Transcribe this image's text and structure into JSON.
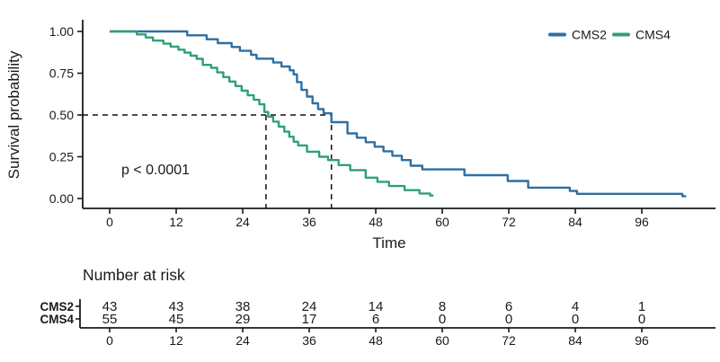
{
  "chart_data": {
    "type": "line",
    "subtype": "kaplan-meier-step",
    "title": "",
    "xlabel": "Time",
    "ylabel": "Survival probability",
    "xlim": [
      0,
      109
    ],
    "ylim": [
      0,
      1
    ],
    "x_ticks": [
      0,
      12,
      24,
      36,
      48,
      60,
      72,
      84,
      96
    ],
    "y_ticks": [
      1.0,
      0.75,
      0.5,
      0.25,
      0.0
    ],
    "y_tick_labels": [
      "1.00",
      "0.75",
      "0.50",
      "0.25",
      "0.00"
    ],
    "grid": false,
    "legend_position": "top-right",
    "annotations": {
      "p_value": "p < 0.0001",
      "median_survival": [
        {
          "group": "CMS4",
          "time": 28.2
        },
        {
          "group": "CMS2",
          "time": 40
        },
        {
          "survival_level": 0.5
        }
      ]
    },
    "series": [
      {
        "name": "CMS2",
        "color": "#2D6FA3",
        "points": [
          [
            0,
            1.0
          ],
          [
            14,
            0.977
          ],
          [
            17.5,
            0.953
          ],
          [
            19.5,
            0.93
          ],
          [
            22,
            0.907
          ],
          [
            23.5,
            0.884
          ],
          [
            25.5,
            0.86
          ],
          [
            26.5,
            0.837
          ],
          [
            29.5,
            0.814
          ],
          [
            31,
            0.79
          ],
          [
            32.5,
            0.767
          ],
          [
            33.2,
            0.743
          ],
          [
            33.8,
            0.697
          ],
          [
            34.6,
            0.65
          ],
          [
            35.6,
            0.61
          ],
          [
            36.6,
            0.57
          ],
          [
            37.6,
            0.535
          ],
          [
            38.6,
            0.51
          ],
          [
            40,
            0.457
          ],
          [
            42.9,
            0.39
          ],
          [
            44.6,
            0.364
          ],
          [
            46.2,
            0.337
          ],
          [
            47.8,
            0.31
          ],
          [
            49.4,
            0.283
          ],
          [
            51,
            0.256
          ],
          [
            52.7,
            0.23
          ],
          [
            54.3,
            0.196
          ],
          [
            56.4,
            0.174
          ],
          [
            64,
            0.14
          ],
          [
            71.8,
            0.105
          ],
          [
            75.5,
            0.065
          ],
          [
            83,
            0.045
          ],
          [
            84.3,
            0.028
          ],
          [
            103.3,
            0.014
          ],
          [
            104,
            0.014
          ]
        ]
      },
      {
        "name": "CMS4",
        "color": "#2FA077",
        "points": [
          [
            0,
            1.0
          ],
          [
            4.9,
            0.982
          ],
          [
            6.5,
            0.964
          ],
          [
            7.8,
            0.945
          ],
          [
            9.7,
            0.927
          ],
          [
            11,
            0.909
          ],
          [
            12.4,
            0.891
          ],
          [
            13.5,
            0.873
          ],
          [
            14.6,
            0.855
          ],
          [
            15.7,
            0.836
          ],
          [
            16.8,
            0.8
          ],
          [
            18.3,
            0.782
          ],
          [
            19.4,
            0.755
          ],
          [
            20.5,
            0.727
          ],
          [
            21.6,
            0.7
          ],
          [
            22.7,
            0.673
          ],
          [
            23.8,
            0.645
          ],
          [
            24.9,
            0.618
          ],
          [
            26,
            0.591
          ],
          [
            27,
            0.564
          ],
          [
            27.9,
            0.518
          ],
          [
            28.6,
            0.49
          ],
          [
            29.5,
            0.46
          ],
          [
            30.5,
            0.43
          ],
          [
            31.5,
            0.4
          ],
          [
            32.4,
            0.37
          ],
          [
            33.2,
            0.34
          ],
          [
            34,
            0.318
          ],
          [
            35.6,
            0.28
          ],
          [
            37.8,
            0.25
          ],
          [
            39.4,
            0.23
          ],
          [
            41.3,
            0.2
          ],
          [
            43.4,
            0.17
          ],
          [
            46.2,
            0.125
          ],
          [
            48.3,
            0.1
          ],
          [
            50.4,
            0.075
          ],
          [
            53.2,
            0.05
          ],
          [
            55.9,
            0.03
          ],
          [
            57.8,
            0.018
          ],
          [
            58.4,
            0.018
          ]
        ]
      }
    ],
    "number_at_risk": {
      "title": "Number at risk",
      "time_points": [
        0,
        12,
        24,
        36,
        48,
        60,
        72,
        84,
        96
      ],
      "rows": [
        {
          "label": "CMS2",
          "color": "#2D6FA3",
          "values": [
            43,
            43,
            38,
            24,
            14,
            8,
            6,
            4,
            1
          ]
        },
        {
          "label": "CMS4",
          "color": "#2FA077",
          "values": [
            55,
            45,
            29,
            17,
            6,
            0,
            0,
            0,
            0
          ]
        }
      ]
    }
  }
}
